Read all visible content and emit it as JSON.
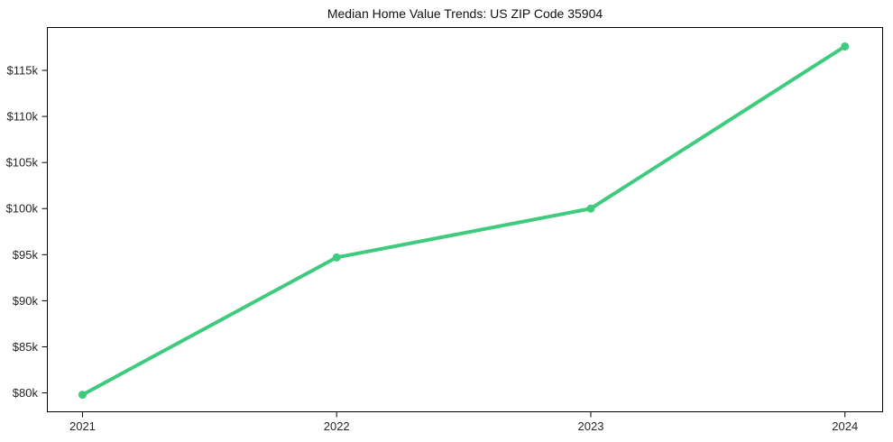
{
  "figure": {
    "background": "#ffffff"
  },
  "chart_data": {
    "type": "line",
    "title": "Median Home Value Trends: US ZIP Code 35904",
    "x": [
      2021,
      2022,
      2023,
      2024
    ],
    "values": [
      79800,
      94700,
      100000,
      117600
    ],
    "x_tick_labels": [
      "2021",
      "2022",
      "2023",
      "2024"
    ],
    "y_ticks": [
      {
        "label": "$80k",
        "value": 80000
      },
      {
        "label": "$85k",
        "value": 85000
      },
      {
        "label": "$90k",
        "value": 90000
      },
      {
        "label": "$95k",
        "value": 95000
      },
      {
        "label": "$100k",
        "value": 100000
      },
      {
        "label": "$105k",
        "value": 105000
      },
      {
        "label": "$110k",
        "value": 110000
      },
      {
        "label": "$115k",
        "value": 115000
      }
    ],
    "xlim": [
      2020.86,
      2024.15
    ],
    "ylim": [
      77900,
      119700
    ],
    "xlabel": "",
    "ylabel": "",
    "grid": false,
    "legend": "none",
    "line_color": "#3ecb7d",
    "marker": "circle",
    "line_width": 4,
    "marker_radius": 4.5,
    "axis_color": "#000000",
    "tick_label_color": "#262626"
  }
}
